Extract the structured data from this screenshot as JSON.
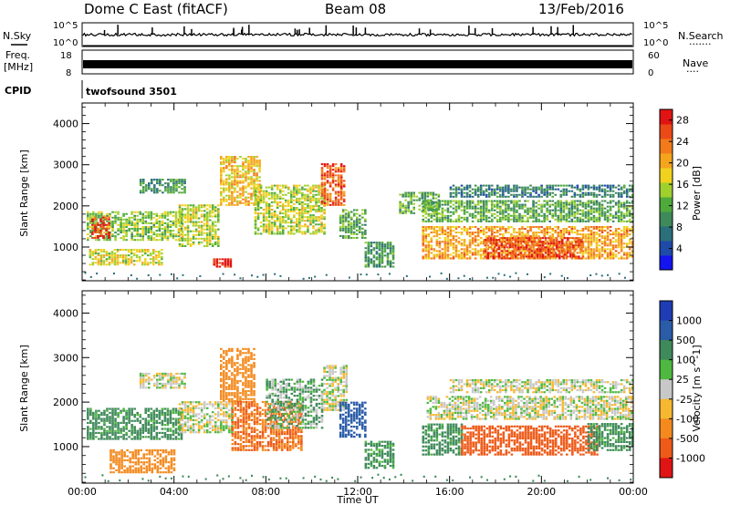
{
  "header": {
    "title": "Dome C East (fitACF)",
    "beam": "Beam 08",
    "date": "13/Feb/2016"
  },
  "strips": {
    "nsky_label": "N.Sky",
    "nsearch_label": "N.Search",
    "nsearch_dots": "·······",
    "freq_label_1": "Freq.",
    "freq_label_2": "[MHz]",
    "nave_label": "Nave",
    "nave_dots": "····",
    "cpid_label": "CPID",
    "cpid_value": "twofsound 3501",
    "noise_left_ticks": [
      "10^5",
      "10^0"
    ],
    "noise_right_ticks": [
      "10^5",
      "10^0"
    ],
    "freq_left_ticks": [
      "18",
      "8"
    ],
    "freq_right_ticks": [
      "60",
      "0"
    ]
  },
  "chart_data": [
    {
      "type": "heatmap",
      "panel": "power",
      "ylabel": "Slant Range [km]",
      "xlabel": "",
      "ylim": [
        180,
        4500
      ],
      "y_ticks": [
        1000,
        2000,
        3000,
        4000
      ],
      "x_ticks": [
        "00:00",
        "04:00",
        "08:00",
        "12:00",
        "16:00",
        "20:00",
        "00:00"
      ],
      "x_hours": [
        0,
        4,
        8,
        12,
        16,
        20,
        24
      ],
      "colorbar": {
        "label": "Power [dB]",
        "ticks": [
          4,
          8,
          12,
          16,
          20,
          24,
          28
        ],
        "range": [
          0,
          30
        ],
        "colors": [
          "#1414f0",
          "#1e4aa8",
          "#2a6f7a",
          "#3f8a5a",
          "#4faa3c",
          "#9fd02e",
          "#f0d21e",
          "#f4a51c",
          "#f27a1a",
          "#ea4a18",
          "#e01414"
        ]
      },
      "regions": [
        {
          "h0": 0.2,
          "h1": 4.3,
          "r0": 1150,
          "r1": 1850,
          "v": 14
        },
        {
          "h0": 0.4,
          "h1": 1.2,
          "r0": 1200,
          "r1": 1700,
          "v": 27
        },
        {
          "h0": 0.3,
          "h1": 3.5,
          "r0": 550,
          "r1": 950,
          "v": 17
        },
        {
          "h0": 2.5,
          "h1": 4.5,
          "r0": 2300,
          "r1": 2650,
          "v": 10
        },
        {
          "h0": 4.2,
          "h1": 6.0,
          "r0": 1000,
          "r1": 2000,
          "v": 16
        },
        {
          "h0": 5.7,
          "h1": 6.5,
          "r0": 500,
          "r1": 700,
          "v": 28
        },
        {
          "h0": 6.0,
          "h1": 7.8,
          "r0": 2000,
          "r1": 3200,
          "v": 19
        },
        {
          "h0": 7.5,
          "h1": 10.5,
          "r0": 1300,
          "r1": 2500,
          "v": 16
        },
        {
          "h0": 10.4,
          "h1": 11.4,
          "r0": 2000,
          "r1": 3000,
          "v": 25
        },
        {
          "h0": 11.2,
          "h1": 12.3,
          "r0": 1200,
          "r1": 1900,
          "v": 12
        },
        {
          "h0": 12.3,
          "h1": 13.6,
          "r0": 500,
          "r1": 1100,
          "v": 10
        },
        {
          "h0": 13.8,
          "h1": 15.5,
          "r0": 1800,
          "r1": 2300,
          "v": 12
        },
        {
          "h0": 14.8,
          "h1": 24.0,
          "r0": 700,
          "r1": 1500,
          "v": 21
        },
        {
          "h0": 17.5,
          "h1": 21.8,
          "r0": 700,
          "r1": 1200,
          "v": 26
        },
        {
          "h0": 14.8,
          "h1": 24.0,
          "r0": 1600,
          "r1": 2100,
          "v": 12
        },
        {
          "h0": 16.0,
          "h1": 24.0,
          "r0": 2200,
          "r1": 2500,
          "v": 8
        }
      ]
    },
    {
      "type": "heatmap",
      "panel": "velocity",
      "ylabel": "Slant Range [km]",
      "xlabel": "Time UT",
      "ylim": [
        180,
        4500
      ],
      "y_ticks": [
        1000,
        2000,
        3000,
        4000
      ],
      "x_ticks": [
        "00:00",
        "04:00",
        "08:00",
        "12:00",
        "16:00",
        "20:00",
        "00:00"
      ],
      "x_hours": [
        0,
        4,
        8,
        12,
        16,
        20,
        24
      ],
      "colorbar": {
        "label": "Velocity [m s^-1]",
        "ticks": [
          "1000",
          "500",
          "100",
          "25",
          "-25",
          "-100",
          "-500",
          "-1000"
        ],
        "colors": [
          "#1e3cb4",
          "#2a5ca8",
          "#3f8a5a",
          "#4fb840",
          "#c8c8c8",
          "#f6b830",
          "#f48a1e",
          "#ee5a18",
          "#e01414"
        ]
      },
      "regions": [
        {
          "h0": 0.2,
          "h1": 4.3,
          "r0": 1150,
          "r1": 1850,
          "v": 100
        },
        {
          "h0": 1.2,
          "h1": 4.0,
          "r0": 400,
          "r1": 900,
          "v": -200
        },
        {
          "h0": 2.5,
          "h1": 4.5,
          "r0": 2300,
          "r1": 2650,
          "v": 0
        },
        {
          "h0": 4.2,
          "h1": 6.5,
          "r0": 1300,
          "r1": 2000,
          "v": 0
        },
        {
          "h0": 6.0,
          "h1": 7.5,
          "r0": 2000,
          "r1": 3200,
          "v": -200
        },
        {
          "h0": 6.5,
          "h1": 9.5,
          "r0": 900,
          "r1": 2000,
          "v": -300
        },
        {
          "h0": 8.0,
          "h1": 10.5,
          "r0": 1400,
          "r1": 2500,
          "v": 50
        },
        {
          "h0": 10.5,
          "h1": 11.5,
          "r0": 1800,
          "r1": 2800,
          "v": 0
        },
        {
          "h0": 11.2,
          "h1": 12.3,
          "r0": 1200,
          "r1": 2000,
          "v": 500
        },
        {
          "h0": 12.3,
          "h1": 13.6,
          "r0": 500,
          "r1": 1100,
          "v": 100
        },
        {
          "h0": 14.8,
          "h1": 16.5,
          "r0": 800,
          "r1": 1500,
          "v": 100
        },
        {
          "h0": 16.5,
          "h1": 22.5,
          "r0": 800,
          "r1": 1450,
          "v": -400
        },
        {
          "h0": 22.0,
          "h1": 24.0,
          "r0": 900,
          "r1": 1500,
          "v": 100
        },
        {
          "h0": 15.0,
          "h1": 24.0,
          "r0": 1600,
          "r1": 2100,
          "v": 0
        },
        {
          "h0": 16.0,
          "h1": 24.0,
          "r0": 2200,
          "r1": 2500,
          "v": 0
        }
      ]
    }
  ]
}
